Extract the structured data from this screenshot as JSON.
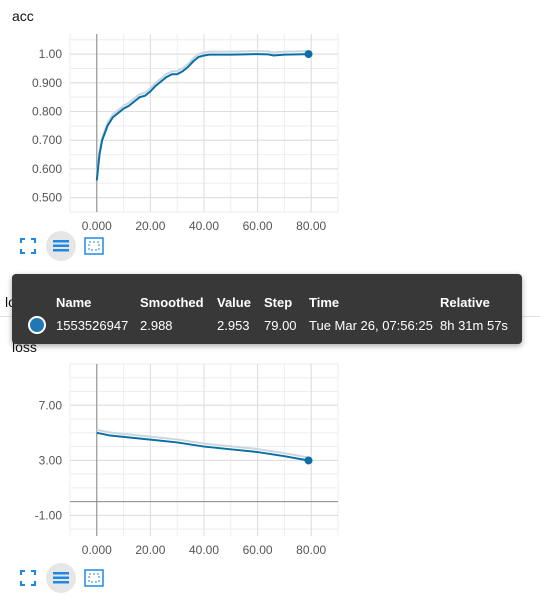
{
  "chart_data": [
    {
      "type": "line",
      "title": "acc",
      "xlim": [
        -10,
        90
      ],
      "ylim": [
        0.45,
        1.07
      ],
      "x_ticks": [
        0,
        20,
        40,
        60,
        80
      ],
      "x_tick_labels": [
        "0.000",
        "20.00",
        "40.00",
        "60.00",
        "80.00"
      ],
      "y_ticks": [
        0.5,
        0.6,
        0.7,
        0.8,
        0.9,
        1.0
      ],
      "y_tick_labels": [
        "0.500",
        "0.600",
        "0.700",
        "0.800",
        "0.900",
        "1.00"
      ],
      "series": [
        {
          "color": "#0b6fa4",
          "x": [
            0,
            1,
            2,
            4,
            6,
            8,
            10,
            12,
            14,
            16,
            18,
            20,
            22,
            24,
            26,
            28,
            30,
            32,
            34,
            36,
            38,
            40,
            42,
            44,
            50,
            55,
            60,
            64,
            66,
            70,
            75,
            79
          ],
          "y": [
            0.56,
            0.65,
            0.7,
            0.75,
            0.78,
            0.795,
            0.81,
            0.82,
            0.835,
            0.85,
            0.855,
            0.87,
            0.89,
            0.905,
            0.92,
            0.93,
            0.93,
            0.94,
            0.955,
            0.975,
            0.99,
            0.995,
            0.998,
            0.998,
            0.998,
            0.999,
            1.0,
            0.999,
            0.995,
            0.998,
            0.999,
            1.0
          ]
        }
      ],
      "grid": true
    },
    {
      "type": "line",
      "title": "loss",
      "xlim": [
        -10,
        90
      ],
      "ylim": [
        -2.5,
        10
      ],
      "x_ticks": [
        0,
        20,
        40,
        60,
        80
      ],
      "x_tick_labels": [
        "0.000",
        "20.00",
        "40.00",
        "60.00",
        "80.00"
      ],
      "y_ticks": [
        -1,
        3,
        7
      ],
      "y_tick_labels": [
        "-1.00",
        "3.00",
        "7.00"
      ],
      "series": [
        {
          "color": "#0b6fa4",
          "x": [
            0,
            5,
            10,
            20,
            30,
            40,
            50,
            60,
            70,
            79
          ],
          "y": [
            5.0,
            4.8,
            4.7,
            4.5,
            4.3,
            4.0,
            3.8,
            3.6,
            3.3,
            2.99
          ]
        }
      ],
      "grid": true
    }
  ],
  "tooltip": {
    "headers": {
      "name": "Name",
      "smoothed": "Smoothed",
      "value": "Value",
      "step": "Step",
      "time": "Time",
      "relative": "Relative"
    },
    "row": {
      "name": "1553526947",
      "smoothed": "2.988",
      "value": "2.953",
      "step": "79.00",
      "time": "Tue Mar 26, 07:56:25",
      "relative": "8h 31m 57s"
    },
    "dot_color": "#1f77b4"
  },
  "card_labels": {
    "hidden_title": "loss"
  },
  "toolbar_icons": [
    "fit-domain-icon",
    "data-selection-icon",
    "zoom-icon"
  ]
}
